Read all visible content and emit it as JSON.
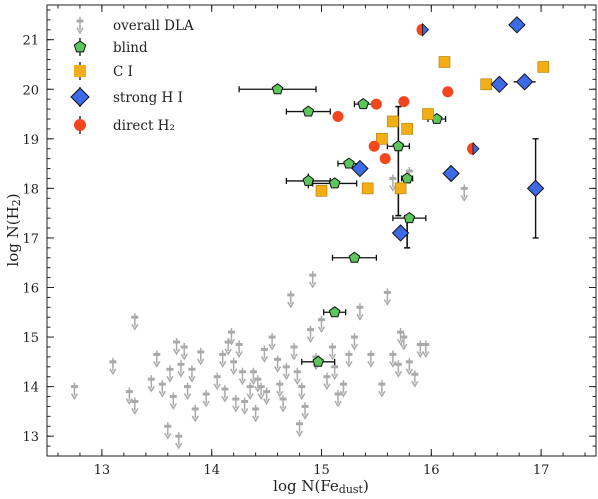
{
  "chart_data": {
    "type": "scatter",
    "title": "",
    "xlabel_main": "log N(Fe",
    "xlabel_sub": "dust",
    "xlabel_close": ")",
    "ylabel_main": "log N(H",
    "ylabel_sub": "2",
    "ylabel_close": ")",
    "xlim": [
      12.5,
      17.5
    ],
    "ylim": [
      12.6,
      21.7
    ],
    "xticks": [
      13,
      14,
      15,
      16,
      17
    ],
    "yticks": [
      13,
      14,
      15,
      16,
      17,
      18,
      19,
      20,
      21
    ],
    "grid": false,
    "legend_position": "top-left",
    "legend": [
      {
        "key": "overall",
        "label": "overall DLA"
      },
      {
        "key": "blind",
        "label": "blind"
      },
      {
        "key": "ci",
        "label": "C I"
      },
      {
        "key": "strong",
        "label": "strong H I"
      },
      {
        "key": "direct",
        "label": "direct H₂"
      }
    ],
    "colors": {
      "overall": "#aaaaaa",
      "blind": "#5cc85c",
      "ci": "#f2ae14",
      "strong": "#3d6be8",
      "direct": "#f2461e"
    },
    "series": {
      "overall": [
        [
          12.75,
          14.0
        ],
        [
          13.1,
          14.5
        ],
        [
          13.25,
          13.9
        ],
        [
          13.3,
          13.7
        ],
        [
          13.3,
          15.4
        ],
        [
          13.45,
          14.15
        ],
        [
          13.5,
          14.65
        ],
        [
          13.55,
          14.05
        ],
        [
          13.6,
          13.2
        ],
        [
          13.62,
          14.35
        ],
        [
          13.65,
          13.8
        ],
        [
          13.68,
          14.9
        ],
        [
          13.7,
          13.0
        ],
        [
          13.72,
          14.45
        ],
        [
          13.75,
          14.8
        ],
        [
          13.78,
          14.0
        ],
        [
          13.82,
          14.35
        ],
        [
          13.85,
          13.55
        ],
        [
          13.9,
          14.7
        ],
        [
          13.95,
          13.85
        ],
        [
          14.05,
          14.2
        ],
        [
          14.1,
          14.65
        ],
        [
          14.12,
          13.95
        ],
        [
          14.15,
          14.9
        ],
        [
          14.18,
          15.1
        ],
        [
          14.2,
          14.5
        ],
        [
          14.22,
          13.75
        ],
        [
          14.25,
          14.85
        ],
        [
          14.28,
          14.3
        ],
        [
          14.3,
          13.7
        ],
        [
          14.35,
          14.0
        ],
        [
          14.38,
          14.3
        ],
        [
          14.4,
          13.55
        ],
        [
          14.42,
          14.15
        ],
        [
          14.45,
          14.0
        ],
        [
          14.48,
          14.75
        ],
        [
          14.5,
          13.9
        ],
        [
          14.55,
          15.0
        ],
        [
          14.6,
          14.55
        ],
        [
          14.62,
          14.05
        ],
        [
          14.65,
          13.75
        ],
        [
          14.68,
          14.4
        ],
        [
          14.72,
          15.85
        ],
        [
          14.75,
          14.8
        ],
        [
          14.78,
          14.3
        ],
        [
          14.8,
          13.25
        ],
        [
          14.82,
          14.0
        ],
        [
          14.85,
          13.6
        ],
        [
          14.9,
          15.15
        ],
        [
          14.92,
          16.25
        ],
        [
          14.95,
          14.6
        ],
        [
          15.0,
          15.35
        ],
        [
          15.05,
          14.2
        ],
        [
          15.1,
          14.8
        ],
        [
          15.12,
          14.4
        ],
        [
          15.15,
          13.85
        ],
        [
          15.2,
          14.05
        ],
        [
          15.25,
          14.65
        ],
        [
          15.3,
          15.0
        ],
        [
          15.35,
          15.6
        ],
        [
          15.45,
          14.65
        ],
        [
          15.55,
          14.05
        ],
        [
          15.6,
          15.9
        ],
        [
          15.65,
          14.65
        ],
        [
          15.7,
          14.45
        ],
        [
          15.72,
          15.1
        ],
        [
          15.75,
          15.0
        ],
        [
          15.8,
          14.5
        ],
        [
          15.85,
          14.25
        ],
        [
          15.9,
          14.85
        ],
        [
          15.95,
          14.85
        ],
        [
          16.3,
          18.0
        ],
        [
          15.8,
          18.35
        ],
        [
          15.65,
          18.2
        ]
      ],
      "blind": [
        {
          "x": 14.6,
          "y": 20.0,
          "xerr": 0.35
        },
        {
          "x": 14.88,
          "y": 19.55,
          "xerr": 0.2
        },
        {
          "x": 14.88,
          "y": 18.15,
          "xerr": 0.2,
          "yerr": 0.15
        },
        {
          "x": 15.12,
          "y": 18.1,
          "xerr": 0.2
        },
        {
          "x": 15.25,
          "y": 18.5,
          "xerr": 0.1
        },
        {
          "x": 15.38,
          "y": 19.7,
          "xerr": 0.08
        },
        {
          "x": 15.7,
          "y": 18.85,
          "xerr": 0.1
        },
        {
          "x": 15.78,
          "y": 18.2,
          "xerr": 0.05
        },
        {
          "x": 15.8,
          "y": 17.4,
          "xerr": 0.15
        },
        {
          "x": 16.05,
          "y": 19.4,
          "xerr": 0.08
        },
        {
          "x": 15.3,
          "y": 16.6,
          "xerr": 0.2
        },
        {
          "x": 15.12,
          "y": 15.5,
          "xerr": 0.1
        },
        {
          "x": 14.97,
          "y": 14.5,
          "xerr": 0.15
        }
      ],
      "ci": [
        [
          15.0,
          17.95
        ],
        [
          15.42,
          18.0
        ],
        [
          15.55,
          19.0
        ],
        [
          15.65,
          19.35
        ],
        [
          15.72,
          18.0
        ],
        [
          15.78,
          19.2
        ],
        [
          15.97,
          19.5
        ],
        [
          16.12,
          20.55
        ],
        [
          16.5,
          20.1
        ],
        [
          17.02,
          20.45
        ]
      ],
      "strong": [
        {
          "x": 15.35,
          "y": 18.4
        },
        {
          "x": 15.72,
          "y": 17.1
        },
        {
          "x": 16.18,
          "y": 18.3
        },
        {
          "x": 16.62,
          "y": 20.1
        },
        {
          "x": 16.78,
          "y": 21.3
        },
        {
          "x": 16.85,
          "y": 20.15,
          "xerr": 0.1
        },
        {
          "x": 16.95,
          "y": 18.0,
          "yerr_up": 1.0,
          "yerr_down": 1.0
        }
      ],
      "direct": [
        [
          15.15,
          19.45
        ],
        [
          15.48,
          18.85
        ],
        [
          15.5,
          19.7
        ],
        [
          15.58,
          18.6
        ],
        [
          15.75,
          19.75
        ],
        [
          16.15,
          19.95
        ]
      ],
      "split": [
        {
          "x": 15.92,
          "y": 21.2
        },
        {
          "x": 16.38,
          "y": 18.8
        }
      ],
      "vbars": [
        {
          "x": 15.7,
          "y_low": 17.45,
          "y_high": 19.65
        },
        {
          "x": 15.78,
          "y_low": 16.8,
          "y_high": 17.45
        }
      ]
    }
  }
}
